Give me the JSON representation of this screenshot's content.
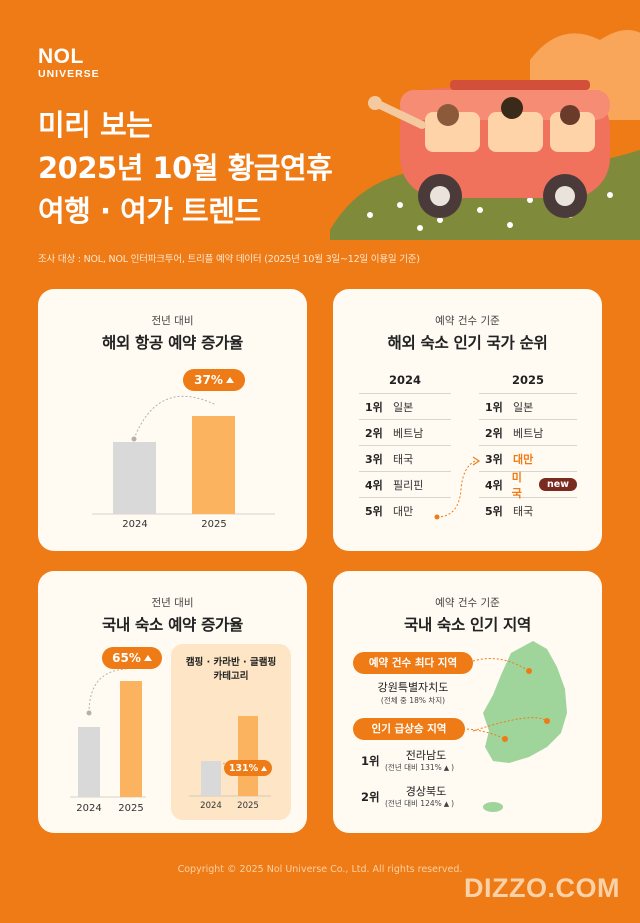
{
  "brand": {
    "line1": "NOL",
    "line2": "UNIVERSE"
  },
  "title": {
    "line1": "미리 보는",
    "line2": "2025년 10월 황금연휴",
    "line3": "여행 · 여가 트렌드"
  },
  "survey": "조사 대상 : NOL, NOL 인터파크투어, 트리플 예약 데이터 (2025년 10월 3일~12일 이용일 기준)",
  "card1": {
    "subtitle": "전년 대비",
    "title": "해외 항공 예약 증가율",
    "increase": "37%",
    "chart_data": {
      "type": "bar",
      "categories": [
        "2024",
        "2025"
      ],
      "values": [
        100,
        137
      ]
    }
  },
  "card2": {
    "subtitle": "예약 건수 기준",
    "title": "해외 숙소 인기 국가 순위",
    "year_2024": "2024",
    "year_2025": "2025",
    "rank_2024": [
      {
        "rank": "1위",
        "name": "일본"
      },
      {
        "rank": "2위",
        "name": "베트남"
      },
      {
        "rank": "3위",
        "name": "태국"
      },
      {
        "rank": "4위",
        "name": "필리핀"
      },
      {
        "rank": "5위",
        "name": "대만"
      }
    ],
    "rank_2025": [
      {
        "rank": "1위",
        "name": "일본"
      },
      {
        "rank": "2위",
        "name": "베트남"
      },
      {
        "rank": "3위",
        "name": "대만"
      },
      {
        "rank": "4위",
        "name": "미국"
      },
      {
        "rank": "5위",
        "name": "태국"
      }
    ],
    "new_badge": "new"
  },
  "card3": {
    "subtitle": "전년 대비",
    "title": "국내 숙소 예약 증가율",
    "increase": "65%",
    "x1": "2024",
    "x2": "2025",
    "sub_title_line1": "캠핑 · 카라반 · 글램핑",
    "sub_title_line2": "카테고리",
    "sub_increase": "131%",
    "chart_data": [
      {
        "type": "bar",
        "categories": [
          "2024",
          "2025"
        ],
        "values": [
          100,
          165
        ]
      },
      {
        "type": "bar",
        "categories": [
          "2024",
          "2025"
        ],
        "values": [
          100,
          231
        ]
      }
    ]
  },
  "card4": {
    "subtitle": "예약 건수 기준",
    "title": "국내 숙소 인기 지역",
    "top_label": "예약 건수 최다 지역",
    "top_region": "강원특별자치도",
    "top_note": "(전체 중 18% 차지)",
    "rise_label": "인기 급상승 지역",
    "rise": [
      {
        "rank": "1위",
        "name": "전라남도",
        "note": "(전년 대비 131%"
      },
      {
        "rank": "2위",
        "name": "경상북도",
        "note": "(전년 대비 124%"
      }
    ]
  },
  "footer": "Copyright © 2025 Nol Universe Co., Ltd. All rights reserved.",
  "watermark": "DIZZO.COM",
  "colors": {
    "orange": "#ee7b16",
    "card": "#fffaf2",
    "bar_light": "#d9d9d9",
    "bar_orange": "#fbb35f",
    "map": "#9fd49a"
  }
}
